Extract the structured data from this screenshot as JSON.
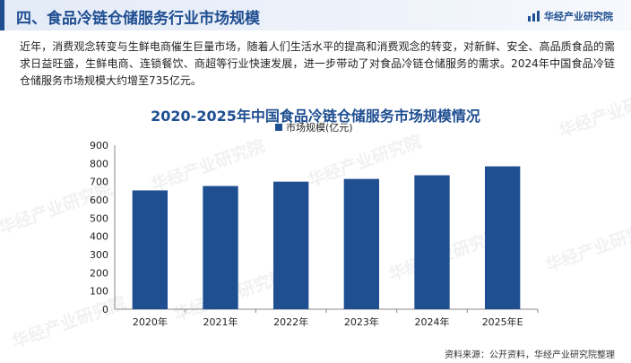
{
  "header": {
    "title": "四、食品冷链仓储服务行业市场规模",
    "brand": "华经产业研究院"
  },
  "intro": "近年，消费观念转变与生鲜电商催生巨量市场，随着人们生活水平的提高和消费观念的转变，对新鲜、安全、高品质食品的需求日益旺盛，生鲜电商、连锁餐饮、商超等行业快速发展，进一步带动了对食品冷链仓储服务的需求。2024年中国食品冷链仓储服务市场规模大约增至735亿元。",
  "watermark": "华经产业研究院",
  "source": "资料来源：公开资料，华经产业研究院整理",
  "chart_data": {
    "type": "bar",
    "title": "2020-2025年中国食品冷链仓储服务市场规模情况",
    "categories": [
      "2020年",
      "2021年",
      "2022年",
      "2023年",
      "2024年",
      "2025年E"
    ],
    "series": [
      {
        "name": "市场规模(亿元)",
        "values": [
          652,
          676,
          700,
          715,
          735,
          784
        ],
        "color": "#1f4e91"
      }
    ],
    "ylim": [
      0,
      900
    ],
    "yticks": [
      0,
      100,
      200,
      300,
      400,
      500,
      600,
      700,
      800,
      900
    ],
    "legend": "top-center",
    "grid": false
  }
}
